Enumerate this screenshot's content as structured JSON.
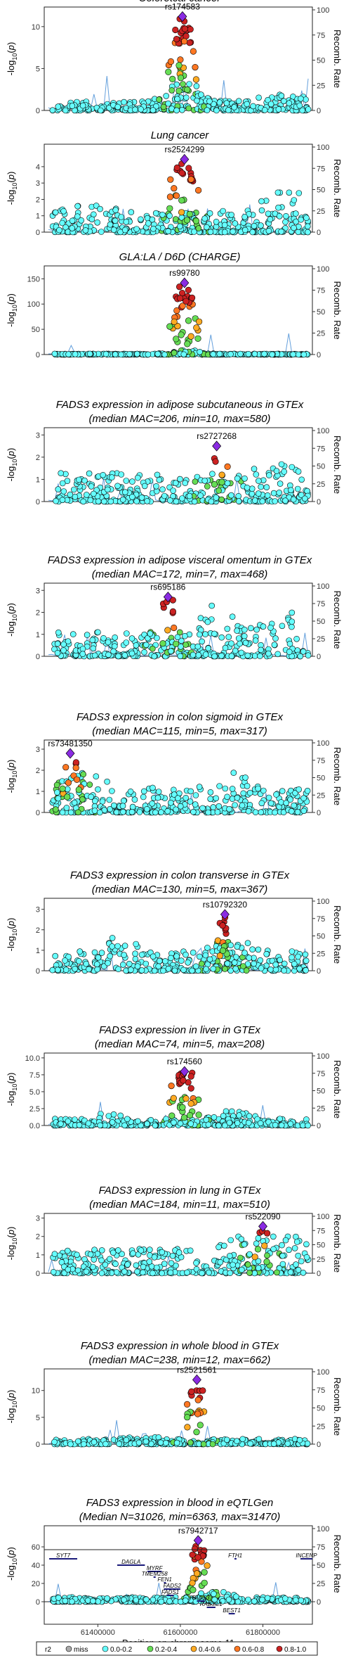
{
  "chart_data": {
    "type": "scatter",
    "panels": [
      {
        "title_lines": [
          "Coloretcal cancer"
        ],
        "ymax": 12,
        "yticks": [
          0,
          5,
          10
        ],
        "lead_snp": "rs174583",
        "lead_x": 61605000,
        "lead_y": 11.2,
        "bg_max": 3.0,
        "shape": "colorectal",
        "seed": 11
      },
      {
        "title_lines": [
          "Lung cancer"
        ],
        "ymax": 5.2,
        "yticks": [
          0,
          1,
          2,
          3,
          4
        ],
        "lead_snp": "rs2524299",
        "lead_x": 61610000,
        "lead_y": 4.45,
        "bg_max": 2.3,
        "shape": "lung",
        "seed": 23
      },
      {
        "title_lines": [
          "GLA:LA / D6D (CHARGE)"
        ],
        "ymax": 170,
        "yticks": [
          0,
          50,
          100,
          150
        ],
        "lead_snp": "rs99780",
        "lead_x": 61610000,
        "lead_y": 142,
        "bg_max": 8,
        "shape": "charge",
        "seed": 37
      },
      {
        "title_lines": [
          "FADS3 expression in adipose subcutaneous in GTEx",
          "(median MAC=206, min=10, max=580)"
        ],
        "ymax": 3.2,
        "yticks": [
          0,
          1,
          2,
          3
        ],
        "lead_snp": "rs2727268",
        "lead_x": 61688000,
        "lead_y": 2.5,
        "bg_max": 1.6,
        "shape": "flat",
        "seed": 41
      },
      {
        "title_lines": [
          "FADS3 expression in adipose visceral omentum in GTEx",
          "(median MAC=172, min=7, max=468)"
        ],
        "ymax": 3.2,
        "yticks": [
          0,
          1,
          2,
          3
        ],
        "lead_snp": "rs695186",
        "lead_x": 61570000,
        "lead_y": 2.7,
        "bg_max": 2.2,
        "shape": "visceral",
        "seed": 53
      },
      {
        "title_lines": [
          "FADS3 expression in colon sigmoid in GTEx",
          "(median MAC=115, min=5, max=317)"
        ],
        "ymax": 3.3,
        "yticks": [
          0,
          1,
          2,
          3
        ],
        "lead_snp": "rs73481350",
        "lead_x": 61333000,
        "lead_y": 2.8,
        "bg_max": 2.0,
        "shape": "sigmoid",
        "seed": 67
      },
      {
        "title_lines": [
          "FADS3 expression in colon transverse in GTEx",
          "(median MAC=130, min=5, max=367)"
        ],
        "ymax": 3.4,
        "yticks": [
          0,
          1,
          2,
          3
        ],
        "lead_snp": "rs10792320",
        "lead_x": 61708000,
        "lead_y": 2.75,
        "bg_max": 1.9,
        "shape": "transverse",
        "seed": 71
      },
      {
        "title_lines": [
          "FADS3 expression in liver in GTEx",
          "(median MAC=74, min=5, max=208)"
        ],
        "ymax": 10.3,
        "yticks": [
          0,
          2.5,
          5.0,
          7.5,
          10.0
        ],
        "ytick_labels": [
          "0.0",
          "2.5",
          "5.0",
          "7.5",
          "10.0"
        ],
        "lead_snp": "rs174560",
        "lead_x": 61610000,
        "lead_y": 8.0,
        "bg_max": 2.0,
        "shape": "liver",
        "seed": 83
      },
      {
        "title_lines": [
          "FADS3 expression in lung in GTEx",
          "(median MAC=184, min=11, max=510)"
        ],
        "ymax": 3.1,
        "yticks": [
          0,
          1,
          2,
          3
        ],
        "lead_snp": "rs522090",
        "lead_x": 61800000,
        "lead_y": 2.55,
        "bg_max": 1.9,
        "shape": "lungg",
        "seed": 97
      },
      {
        "title_lines": [
          "FADS3 expression in whole blood in GTEx",
          "(median MAC=238, min=12, max=662)"
        ],
        "ymax": 13.5,
        "yticks": [
          0,
          5,
          10
        ],
        "lead_snp": "rs2521561",
        "lead_x": 61640000,
        "lead_y": 12.0,
        "bg_max": 1.6,
        "shape": "blood",
        "seed": 101
      },
      {
        "title_lines": [
          "FADS3 expression in blood in eQTLGen",
          "(Median N=31026, min=6363, max=31470)"
        ],
        "ymax": 80,
        "yticks": [
          0,
          20,
          40,
          60
        ],
        "lead_snp": "rs7942717",
        "lead_x": 61643000,
        "lead_y": 67,
        "bg_max": 10,
        "shape": "eqtlgen",
        "seed": 113
      }
    ],
    "y_axis_label": "-log10(p)",
    "y_axis_label_parts": [
      "-log",
      "10",
      "(",
      "p",
      ")"
    ],
    "right_axis_label": "Recomb. Rate",
    "right_axis_ticks": [
      0,
      25,
      50,
      75,
      100
    ],
    "x_range": [
      61270000,
      61920000
    ],
    "x_ticks": [
      61400000,
      61600000,
      61800000
    ],
    "x_axis_label": "Position on chromosome 11",
    "genes": [
      {
        "name": "SYT7",
        "start": 61282000,
        "end": 61350000,
        "row": 0
      },
      {
        "name": "FTH1",
        "start": 61731000,
        "end": 61735000,
        "row": 0
      },
      {
        "name": "INCENP",
        "start": 61891000,
        "end": 61920000,
        "row": 0
      },
      {
        "name": "DAGLA",
        "start": 61447000,
        "end": 61514000,
        "row": 1
      },
      {
        "name": "MYRF",
        "start": 61520000,
        "end": 61555000,
        "row": 2
      },
      {
        "name": "TMEM258",
        "start": 61535000,
        "end": 61540000,
        "row": 3
      },
      {
        "name": "FEN1",
        "start": 61560000,
        "end": 61564000,
        "row": 4
      },
      {
        "name": "FADS2",
        "start": 61560000,
        "end": 61600000,
        "row": 5
      },
      {
        "name": "FADS1",
        "start": 61567000,
        "end": 61584000,
        "row": 6
      },
      {
        "name": "FADS3",
        "start": 61640000,
        "end": 61659000,
        "row": 7
      },
      {
        "name": "RAB3IL1",
        "start": 61664000,
        "end": 61685000,
        "row": 8
      },
      {
        "name": "BEST1",
        "start": 61717000,
        "end": 61732000,
        "row": 9
      }
    ],
    "legend": {
      "title": "r2",
      "items": [
        {
          "label": "miss",
          "color": "#aaaaaa"
        },
        {
          "label": "0.0-0.2",
          "color": "#66ffff"
        },
        {
          "label": "0.2-0.4",
          "color": "#66dd55"
        },
        {
          "label": "0.4-0.6",
          "color": "#ffaa22"
        },
        {
          "label": "0.6-0.8",
          "color": "#ff7722"
        },
        {
          "label": "0.8-1.0",
          "color": "#cc2222"
        }
      ]
    },
    "colors": {
      "miss": "#aaaaaa",
      "r2_0_0.2": "#66ffff",
      "r2_0.2_0.4": "#66dd55",
      "r2_0.4_0.6": "#ffaa22",
      "r2_0.6_0.8": "#ff7722",
      "r2_0.8_1.0": "#cc2222",
      "lead_snp": "#8a2be2",
      "recomb_line": "#4a8fd6",
      "gene": "#1a1a7a"
    },
    "grid": false,
    "legend_placement": "bottom"
  }
}
